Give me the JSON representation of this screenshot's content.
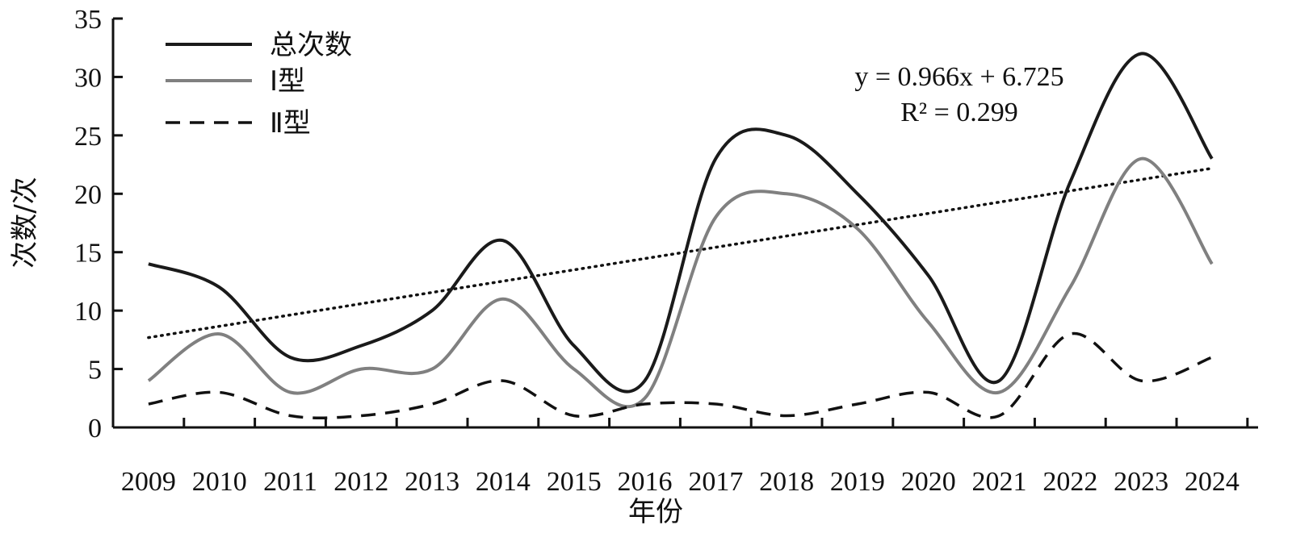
{
  "chart_data": {
    "type": "line",
    "title": "",
    "xlabel": "年份",
    "ylabel": "次数/次",
    "categories": [
      "2009",
      "2010",
      "2011",
      "2012",
      "2013",
      "2014",
      "2015",
      "2016",
      "2017",
      "2018",
      "2019",
      "2020",
      "2021",
      "2022",
      "2023",
      "2024"
    ],
    "ylim": [
      0,
      35
    ],
    "yticks": [
      0,
      5,
      10,
      15,
      20,
      25,
      30,
      35
    ],
    "grid": false,
    "legend": "top-left",
    "series": [
      {
        "name": "总次数",
        "values": [
          14,
          12,
          6,
          7,
          10,
          16,
          7,
          4,
          23,
          25,
          20,
          13,
          4,
          21,
          32,
          23
        ],
        "color": "#1a1a1a",
        "style": "solid"
      },
      {
        "name": "Ⅰ型",
        "values": [
          4,
          8,
          3,
          5,
          5,
          11,
          5,
          2.5,
          18,
          20,
          17,
          9,
          3,
          12,
          23,
          14
        ],
        "color": "#808080",
        "style": "solid"
      },
      {
        "name": "Ⅱ型",
        "values": [
          2,
          3,
          1,
          1,
          2,
          4,
          1,
          2,
          2,
          1,
          2,
          3,
          1,
          8,
          4,
          6
        ],
        "color": "#111111",
        "style": "dashed"
      }
    ],
    "trendline": {
      "equation": "y = 0.966x + 6.725",
      "r2": "R² = 0.299",
      "slope": 0.966,
      "intercept": 6.725,
      "style": "dotted"
    }
  }
}
